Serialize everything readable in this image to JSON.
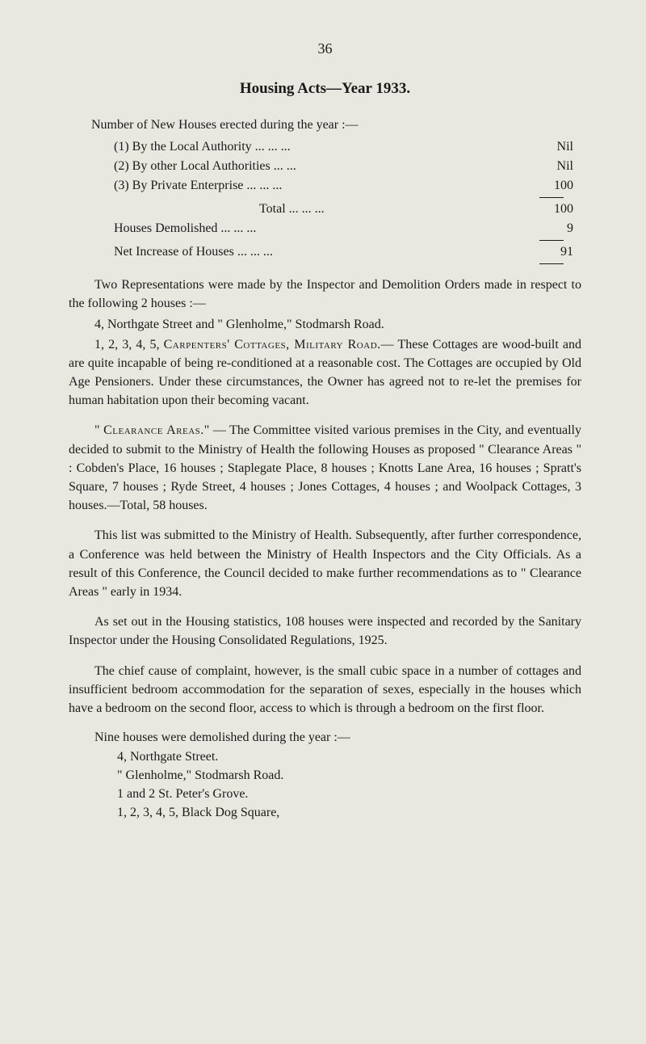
{
  "page_number": "36",
  "title": "Housing Acts—Year 1933.",
  "intro": "Number of New Houses erected during the year :—",
  "stats": {
    "r1_label": "(1) By the Local Authority ...   ...   ...",
    "r1_value": "Nil",
    "r2_label": "(2) By other Local Authorities   ...   ...",
    "r2_value": "Nil",
    "r3_label": "(3) By Private Enterprise   ...   ...   ...",
    "r3_value": "100",
    "total_label": "Total   ...   ...   ...",
    "total_value": "100",
    "demolished_label": "Houses Demolished         ...   ...   ...",
    "demolished_value": "9",
    "net_label": "Net Increase of Houses ...   ...   ...",
    "net_value": "91"
  },
  "para1": "Two Representations were made by the Inspector and Demolition Orders made in respect to the following 2 houses :—",
  "para2_line1": "4, Northgate Street and \" Glenholme,\" Stodmarsh Road.",
  "para2_line2_pre": "1, 2, 3, 4, 5, ",
  "para2_line2_sc": "Carpenters' Cottages, Military Road.",
  "para2_line2_post": "— These Cottages are wood-built and are quite incapable of being re-conditioned at a reasonable cost. The Cottages are occupied by Old Age Pensioners. Under these circumstances, the Owner has agreed not to re-let the premises for human habitation upon their becoming vacant.",
  "para3_pre": "\" ",
  "para3_sc": "Clearance Areas.",
  "para3_post": "\" — The Committee visited various premises in the City, and eventually decided to submit to the Ministry of Health the following Houses as proposed \" Clearance Areas \" : Cobden's Place, 16 houses ; Staplegate Place, 8 houses ; Knotts Lane Area, 16 houses ; Spratt's Square, 7 houses ; Ryde Street, 4 houses ; Jones Cottages, 4 houses ; and Woolpack Cot­tages, 3 houses.—Total, 58 houses.",
  "para4": "This list was submitted to the Ministry of Health. Subse­quently, after further correspondence, a Conference was held between the Ministry of Health Inspectors and the City Officials. As a result of this Conference, the Council decided to make further recommendations as to \" Clearance Areas \" early in 1934.",
  "para5": "As set out in the Housing statistics, 108 houses were inspected and recorded by the Sanitary Inspector under the Housing Consolidated Regulations, 1925.",
  "para6": "The chief cause of complaint, however, is the small cubic space in a number of cottages and insufficient bedroom accom­modation for the separation of sexes, especially in the houses which have a bedroom on the second floor, access to which is through a bedroom on the first floor.",
  "nine_intro": "Nine houses were demolished during the year :—",
  "house_items": {
    "i1": "4, Northgate Street.",
    "i2": "\" Glenholme,\" Stodmarsh Road.",
    "i3": "1 and 2 St. Peter's Grove.",
    "i4": "1, 2, 3, 4, 5, Black Dog Square,"
  }
}
